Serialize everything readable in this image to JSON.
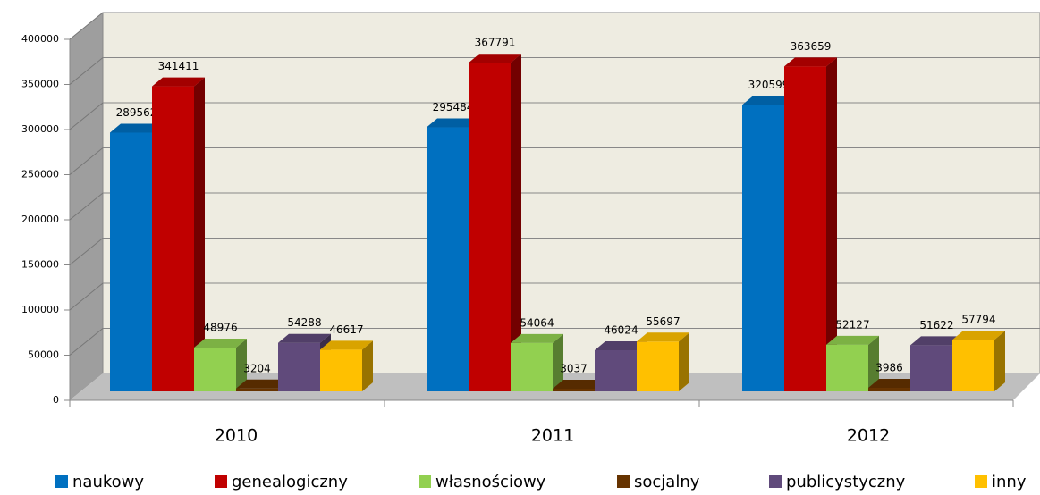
{
  "chart_data": {
    "type": "bar3d",
    "categories": [
      "2010",
      "2011",
      "2012"
    ],
    "series": [
      {
        "name": "naukowy",
        "color": "#0070c0",
        "values": [
          289562,
          295484,
          320599
        ]
      },
      {
        "name": "genealogiczny",
        "color": "#c00000",
        "values": [
          341411,
          367791,
          363659
        ]
      },
      {
        "name": "własnościowy",
        "color": "#92d050",
        "values": [
          48976,
          54064,
          52127
        ]
      },
      {
        "name": "socjalny",
        "color": "#663300",
        "values": [
          3204,
          3037,
          3986
        ]
      },
      {
        "name": "publicystyczny",
        "color": "#604a7b",
        "values": [
          54288,
          46024,
          51622
        ]
      },
      {
        "name": "inny",
        "color": "#ffc000",
        "values": [
          46617,
          55697,
          57794
        ]
      }
    ],
    "ylim": [
      0,
      400000
    ],
    "yticks": [
      0,
      50000,
      100000,
      150000,
      200000,
      250000,
      300000,
      350000,
      400000
    ],
    "grid": true,
    "legend": "bottom"
  }
}
